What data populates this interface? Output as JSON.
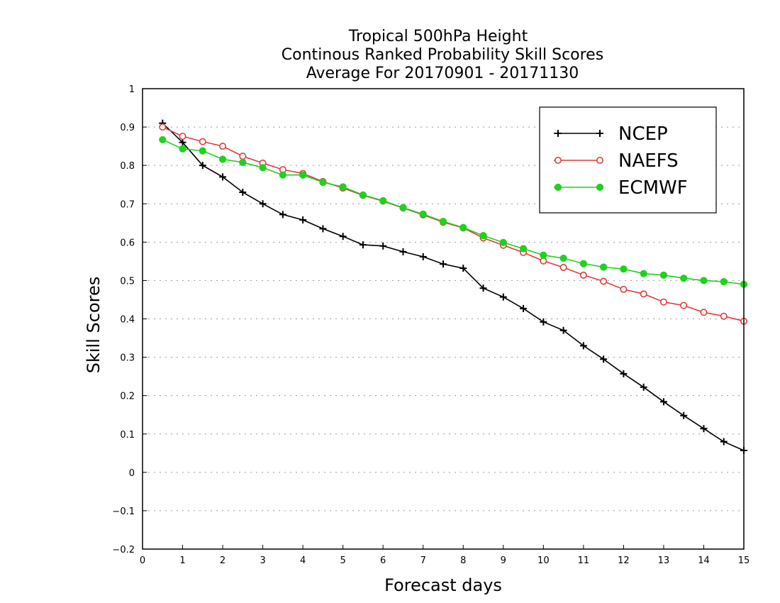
{
  "chart_data": {
    "type": "line",
    "title_lines": [
      "Tropical 500hPa Height",
      "Continous Ranked Probability Skill Scores",
      "Average For 20170901 - 20171130"
    ],
    "xlabel": "Forecast days",
    "ylabel": "Skill Scores",
    "xlim": [
      0,
      15
    ],
    "ylim": [
      -0.2,
      1
    ],
    "x_ticks": [
      0,
      1,
      2,
      3,
      4,
      5,
      6,
      7,
      8,
      9,
      10,
      11,
      12,
      13,
      14,
      15
    ],
    "x_tick_labels": [
      "0",
      "1",
      "2",
      "3",
      "4",
      "5",
      "6",
      "7",
      "8",
      "9",
      "10",
      "11",
      "12",
      "13",
      "14",
      "15"
    ],
    "y_ticks": [
      -0.2,
      -0.1,
      0,
      0.1,
      0.2,
      0.3,
      0.4,
      0.5,
      0.6,
      0.7,
      0.8,
      0.9,
      1
    ],
    "y_tick_labels": [
      "−0.2",
      "−0.1",
      "0",
      "0.1",
      "0.2",
      "0.3",
      "0.4",
      "0.5",
      "0.6",
      "0.7",
      "0.8",
      "0.9",
      "1"
    ],
    "grid": "horizontal-dotted",
    "legend_position": "top-right",
    "x": [
      0.5,
      1,
      1.5,
      2,
      2.5,
      3,
      3.5,
      4,
      4.5,
      5,
      5.5,
      6,
      6.5,
      7,
      7.5,
      8,
      8.5,
      9,
      9.5,
      10,
      10.5,
      11,
      11.5,
      12,
      12.5,
      13,
      13.5,
      14,
      14.5,
      15
    ],
    "series": [
      {
        "name": "NCEP",
        "color": "#000000",
        "marker": "plus",
        "values": [
          0.91,
          0.86,
          0.8,
          0.77,
          0.73,
          0.7,
          0.672,
          0.658,
          0.635,
          0.615,
          0.593,
          0.59,
          0.575,
          0.562,
          0.543,
          0.532,
          0.48,
          0.457,
          0.427,
          0.392,
          0.37,
          0.33,
          0.295,
          0.257,
          0.222,
          0.184,
          0.148,
          0.114,
          0.08,
          0.057
        ]
      },
      {
        "name": "NAEFS",
        "color": "#e03c3c",
        "marker": "open-circle",
        "values": [
          0.9,
          0.876,
          0.862,
          0.85,
          0.824,
          0.806,
          0.789,
          0.779,
          0.758,
          0.741,
          0.722,
          0.707,
          0.689,
          0.671,
          0.652,
          0.637,
          0.611,
          0.592,
          0.573,
          0.551,
          0.534,
          0.514,
          0.498,
          0.477,
          0.465,
          0.444,
          0.435,
          0.417,
          0.407,
          0.394
        ]
      },
      {
        "name": "ECMWF",
        "color": "#1ed21e",
        "marker": "filled-circle",
        "values": [
          0.867,
          0.843,
          0.838,
          0.816,
          0.808,
          0.794,
          0.775,
          0.775,
          0.756,
          0.744,
          0.723,
          0.708,
          0.69,
          0.673,
          0.654,
          0.638,
          0.617,
          0.599,
          0.583,
          0.566,
          0.558,
          0.544,
          0.535,
          0.53,
          0.518,
          0.514,
          0.506,
          0.5,
          0.497,
          0.49
        ]
      }
    ]
  }
}
